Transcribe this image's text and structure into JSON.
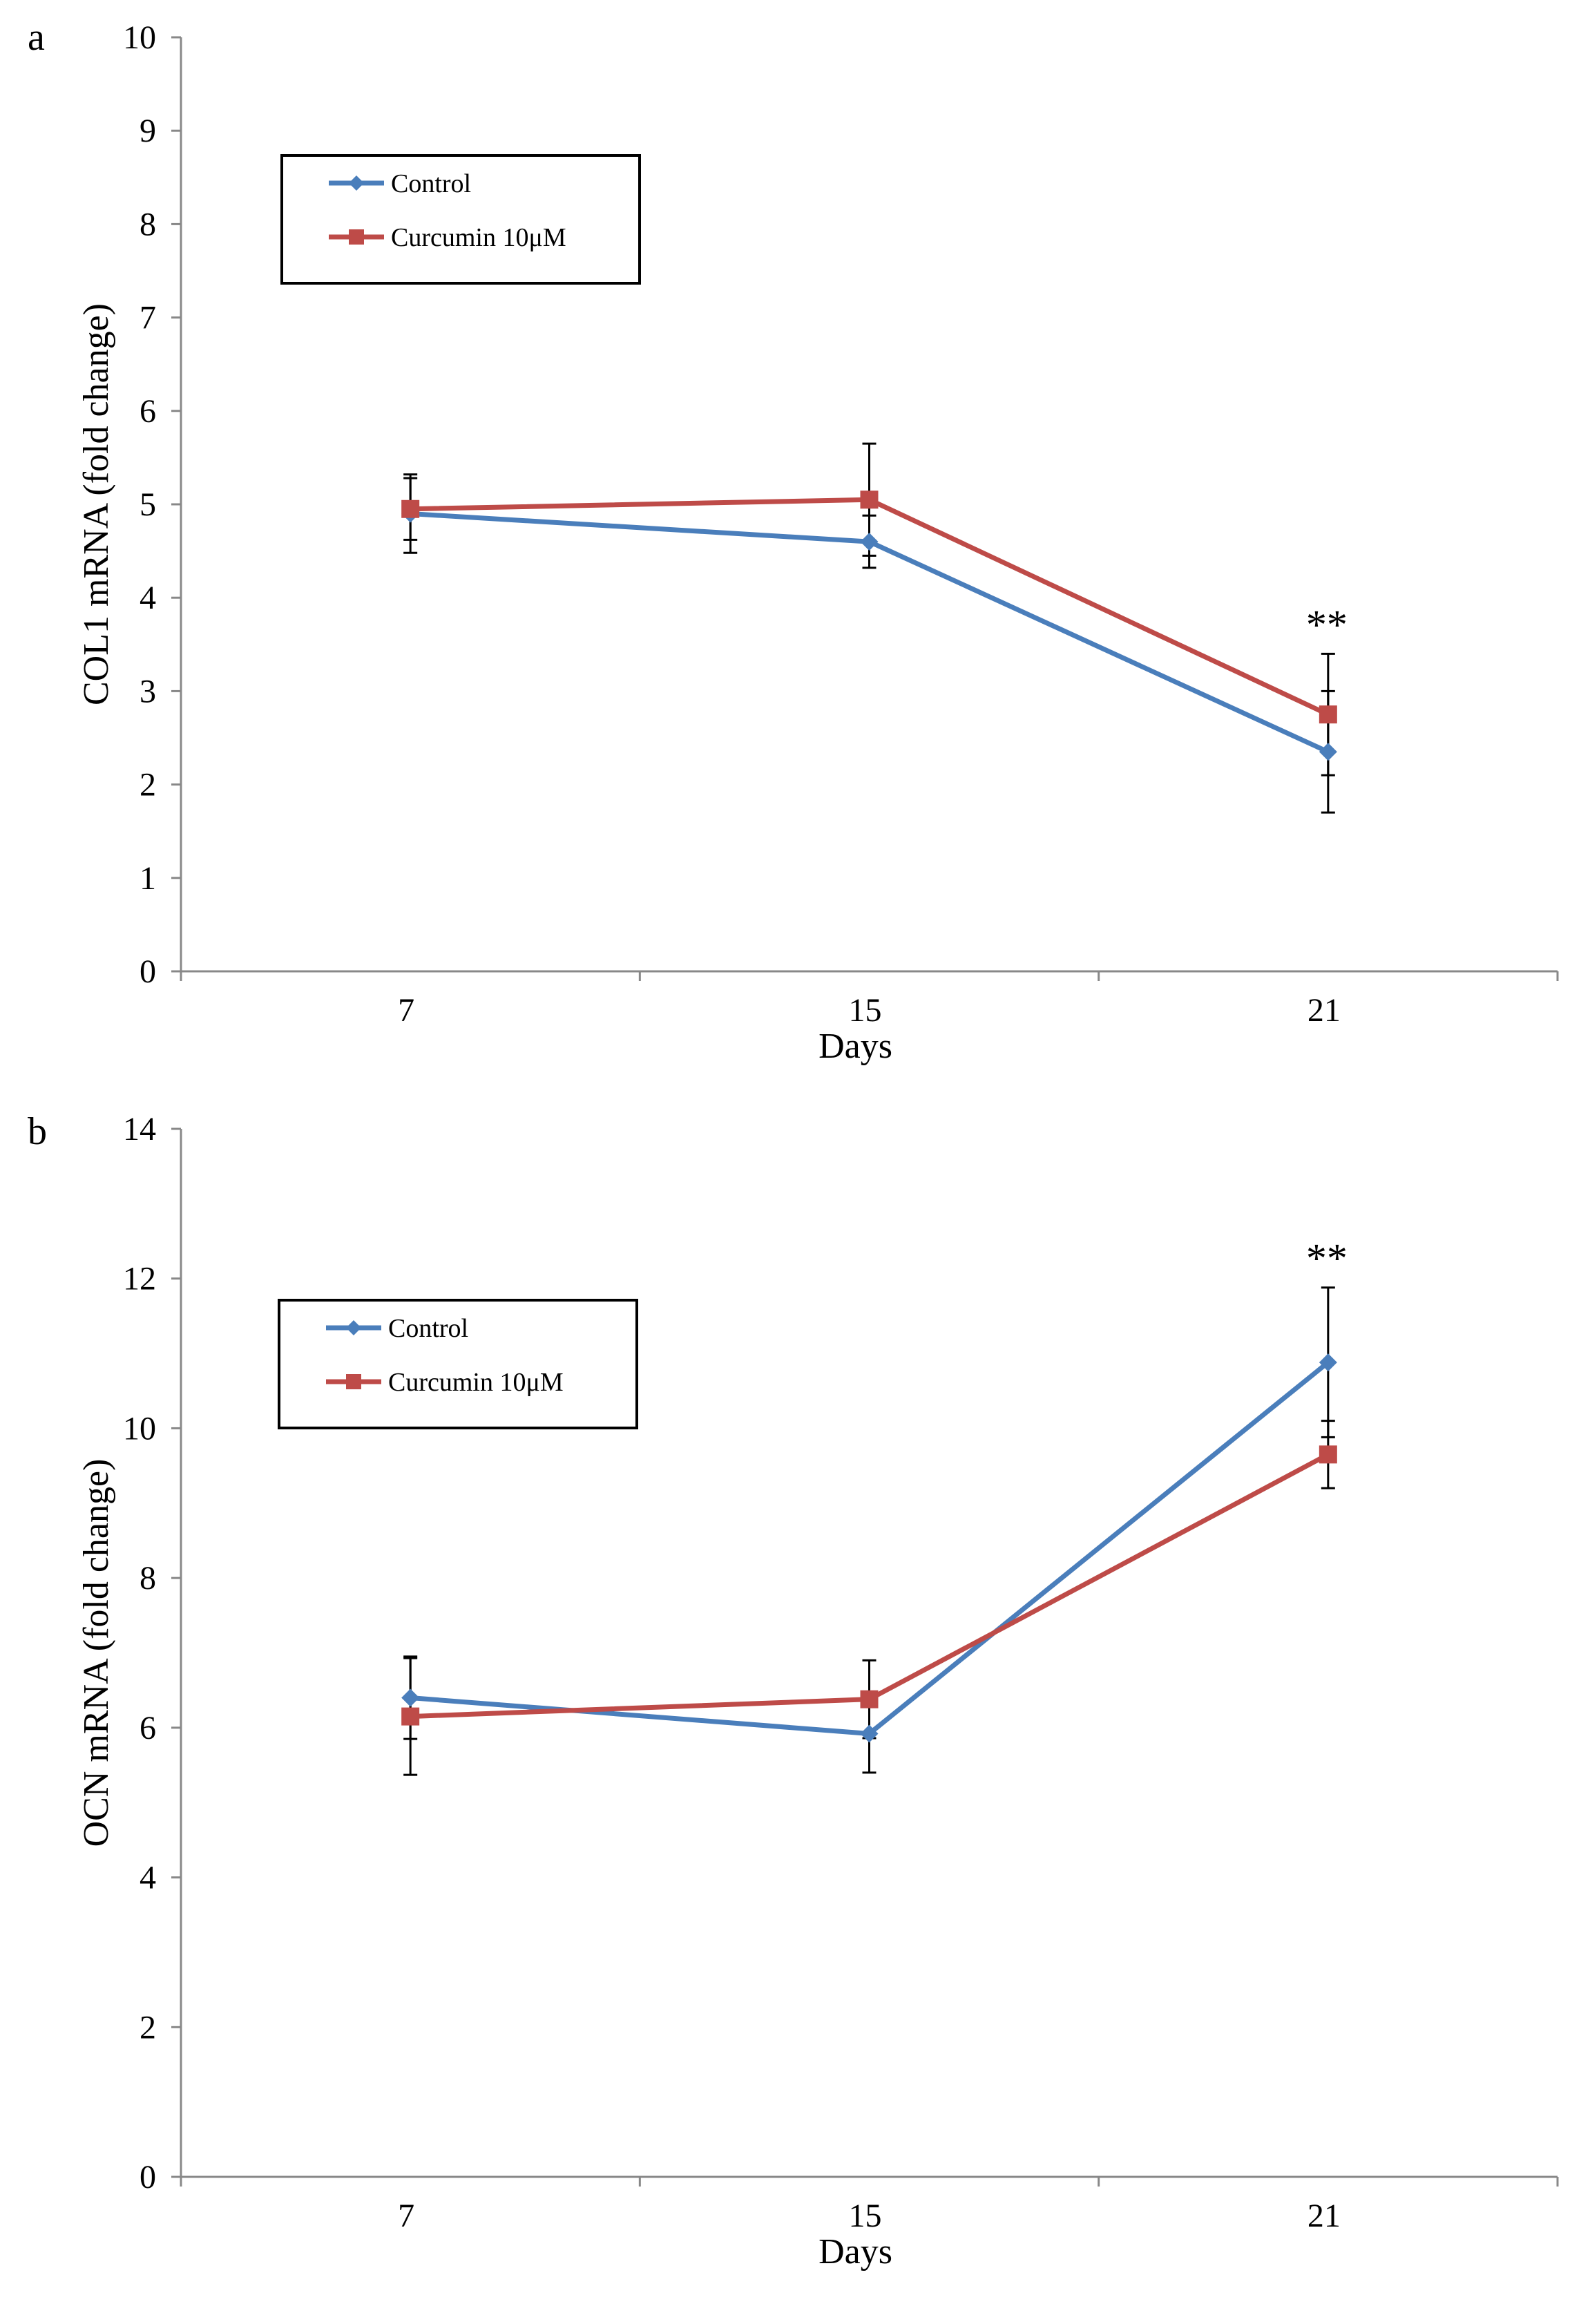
{
  "colors": {
    "control": "#4a7ebb",
    "curcumin": "#be4b48",
    "axis": "#888888",
    "errorbar": "#000000"
  },
  "chart_data": [
    {
      "panel": "a",
      "type": "line",
      "categories": [
        "7",
        "15",
        "21"
      ],
      "xlabel": "Days",
      "ylabel": "COL1 mRNA (fold change)",
      "ylim": [
        0,
        10
      ],
      "yticks": [
        "0",
        "1",
        "2",
        "3",
        "4",
        "5",
        "6",
        "7",
        "8",
        "9",
        "10"
      ],
      "grid": false,
      "legend": "top-left",
      "series": [
        {
          "name": "Control",
          "marker": "diamond",
          "values": [
            4.9,
            4.6,
            2.35
          ],
          "errors": [
            0.42,
            0.28,
            0.65
          ]
        },
        {
          "name": "Curcumin 10μM",
          "marker": "square",
          "values": [
            4.95,
            5.05,
            2.75
          ],
          "errors": [
            0.33,
            0.6,
            0.65
          ]
        }
      ],
      "annotations": [
        {
          "text": "**",
          "category": "21"
        }
      ]
    },
    {
      "panel": "b",
      "type": "line",
      "categories": [
        "7",
        "15",
        "21"
      ],
      "xlabel": "Days",
      "ylabel": "OCN mRNA (fold change)",
      "ylim": [
        0,
        14
      ],
      "yticks": [
        "0",
        "2",
        "4",
        "6",
        "8",
        "10",
        "12",
        "14"
      ],
      "grid": false,
      "legend": "top-left",
      "series": [
        {
          "name": "Control",
          "marker": "diamond",
          "values": [
            6.4,
            5.92,
            10.88
          ],
          "errors": [
            0.55,
            0.52,
            1.0
          ]
        },
        {
          "name": "Curcumin 10μM",
          "marker": "square",
          "values": [
            6.15,
            6.38,
            9.65
          ],
          "errors": [
            0.78,
            0.52,
            0.45
          ]
        }
      ],
      "annotations": [
        {
          "text": "**",
          "category": "21"
        }
      ]
    }
  ]
}
